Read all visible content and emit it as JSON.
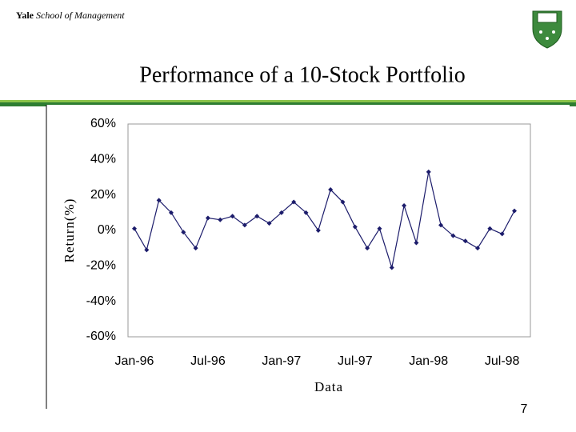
{
  "header": {
    "brand": "Yale",
    "unit": "School of Management"
  },
  "page_number": "7",
  "chart_data": {
    "type": "line",
    "title": "Performance of a 10-Stock Portfolio",
    "ylabel": "Return(%)",
    "xlabel": "Data",
    "categories": [
      "Jan-96",
      null,
      null,
      null,
      null,
      null,
      "Jul-96",
      null,
      null,
      null,
      null,
      null,
      "Jan-97",
      null,
      null,
      null,
      null,
      null,
      "Jul-97",
      null,
      null,
      null,
      null,
      null,
      "Jan-98",
      null,
      null,
      null,
      null,
      null,
      "Jul-98",
      null
    ],
    "values": [
      1,
      -11,
      17,
      10,
      -1,
      -10,
      7,
      6,
      8,
      3,
      8,
      4,
      10,
      16,
      10,
      0,
      23,
      16,
      2,
      -10,
      1,
      -21,
      14,
      -7,
      33,
      3,
      -3,
      -6,
      -10,
      1,
      -2,
      11
    ],
    "color": "#1c1c6b",
    "ylim": [
      -60,
      60
    ],
    "yticks": [
      {
        "value": -60,
        "label": "-60%"
      },
      {
        "value": -40,
        "label": "-40%"
      },
      {
        "value": -20,
        "label": "-20%"
      },
      {
        "value": 0,
        "label": "0%"
      },
      {
        "value": 20,
        "label": "20%"
      },
      {
        "value": 40,
        "label": "40%"
      },
      {
        "value": 60,
        "label": "60%"
      }
    ],
    "grid": false
  }
}
